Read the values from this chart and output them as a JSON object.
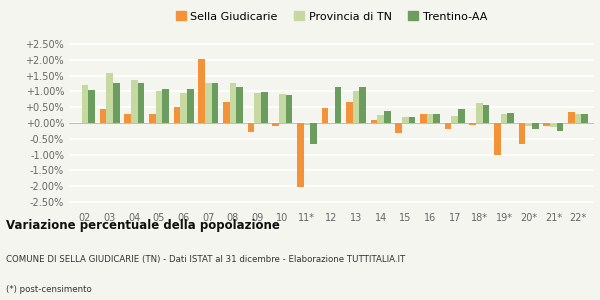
{
  "categories": [
    "02",
    "03",
    "04",
    "05",
    "06",
    "07",
    "08",
    "09",
    "10",
    "11*",
    "12",
    "13",
    "14",
    "15",
    "16",
    "17",
    "18*",
    "19*",
    "20*",
    "21*",
    "22*"
  ],
  "sella": [
    0.0,
    0.45,
    0.3,
    0.28,
    0.5,
    2.02,
    0.65,
    -0.3,
    -0.08,
    -2.02,
    0.48,
    0.67,
    0.08,
    -0.32,
    0.3,
    -0.18,
    -0.05,
    -1.02,
    -0.67,
    -0.08,
    0.35
  ],
  "provincia": [
    1.2,
    1.58,
    1.35,
    1.0,
    0.95,
    1.28,
    1.28,
    0.96,
    0.92,
    -0.07,
    0.0,
    1.02,
    0.25,
    0.2,
    0.27,
    0.22,
    0.62,
    0.3,
    -0.1,
    -0.13,
    0.28
  ],
  "trentino": [
    1.03,
    1.27,
    1.27,
    1.08,
    1.08,
    1.27,
    1.13,
    0.97,
    0.88,
    -0.65,
    1.13,
    1.13,
    0.37,
    0.18,
    0.3,
    0.44,
    0.56,
    0.33,
    -0.2,
    -0.25,
    0.27
  ],
  "color_sella": "#f4923a",
  "color_provincia": "#c5d9a0",
  "color_trentino": "#6b9e5e",
  "title": "Variazione percentuale della popolazione",
  "subtitle1": "COMUNE DI SELLA GIUDICARIE (TN) - Dati ISTAT al 31 dicembre - Elaborazione TUTTITALIA.IT",
  "subtitle2": "(*) post-censimento",
  "legend_labels": [
    "Sella Giudicarie",
    "Provincia di TN",
    "Trentino-AA"
  ],
  "ylim": [
    -2.75,
    2.75
  ],
  "yticks": [
    -2.5,
    -2.0,
    -1.5,
    -1.0,
    -0.5,
    0.0,
    0.5,
    1.0,
    1.5,
    2.0,
    2.5
  ],
  "background_color": "#f5f5f0"
}
